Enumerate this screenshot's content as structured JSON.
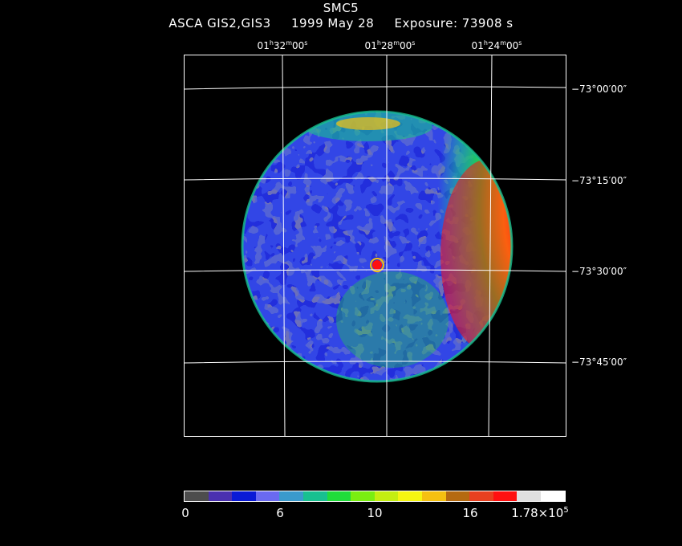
{
  "header": {
    "object": "SMC5",
    "instrument": "ASCA GIS2,GIS3",
    "date": "1999 May 28",
    "exposure": "Exposure: 73908 s"
  },
  "ra_ticks": [
    {
      "h": "01",
      "m": "32",
      "s": "00"
    },
    {
      "h": "01",
      "m": "28",
      "s": "00"
    },
    {
      "h": "01",
      "m": "24",
      "s": "00"
    }
  ],
  "dec_ticks": [
    {
      "label": "−73°00′00″"
    },
    {
      "label": "−73°15′00″"
    },
    {
      "label": "−73°30′00″"
    },
    {
      "label": "−73°45′00″"
    }
  ],
  "colorbar": {
    "colors": [
      "#4d4d4d",
      "#4a30b0",
      "#0a1ad6",
      "#6a6af0",
      "#3a9acc",
      "#18c090",
      "#20dd3a",
      "#7aee10",
      "#c4ee10",
      "#f5f510",
      "#f5c010",
      "#b56a10",
      "#e84020",
      "#ff1010",
      "#e0e0e0",
      "#ffffff"
    ],
    "labels": [
      "0",
      "6",
      "10",
      "16"
    ],
    "max_mantissa": "1.78×10",
    "max_exponent": "5"
  }
}
